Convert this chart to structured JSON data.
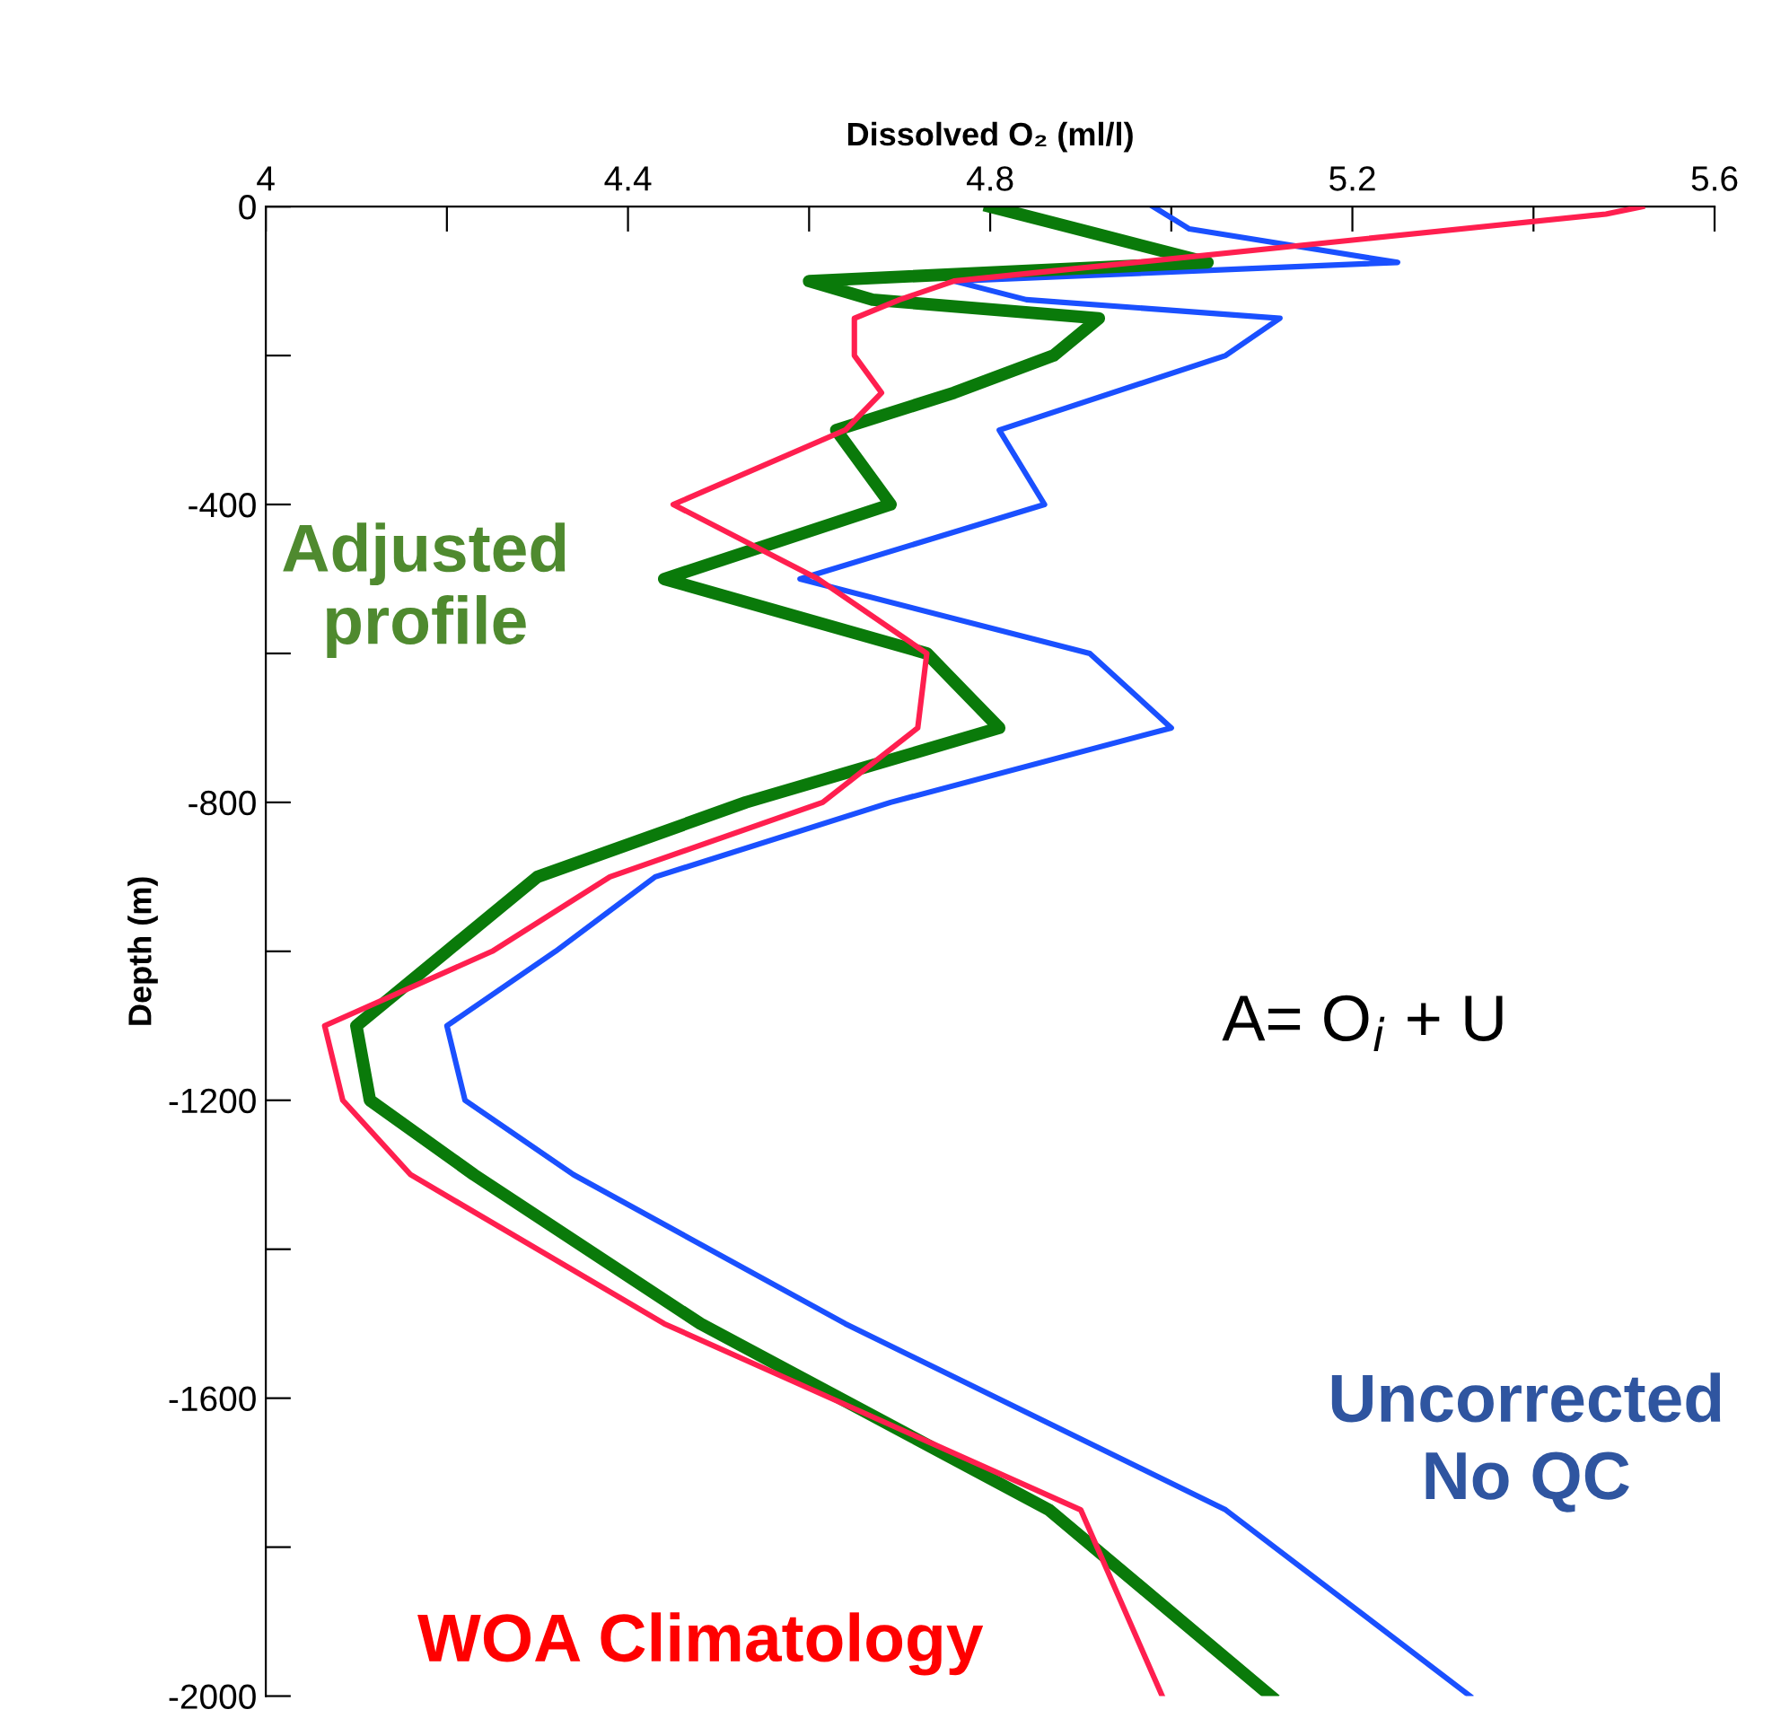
{
  "chart_data": {
    "type": "line",
    "xlabel": "Dissolved O₂ (ml/l)",
    "ylabel": "Depth (m)",
    "xlim": [
      4,
      5.6
    ],
    "xticks": [
      4,
      {
        "value": 4.2,
        "label": null
      },
      4.4,
      {
        "value": 4.6,
        "label": null
      },
      4.8,
      {
        "value": 5.0,
        "label": null
      },
      5.2,
      {
        "value": 5.4,
        "label": null
      },
      5.6
    ],
    "ylim": [
      -2000,
      0
    ],
    "yticks": [
      0,
      {
        "value": -200,
        "label": null
      },
      -400,
      {
        "value": -600,
        "label": null
      },
      -800,
      {
        "value": -1000,
        "label": null
      },
      -1200,
      {
        "value": -1400,
        "label": null
      },
      -1600,
      {
        "value": -1800,
        "label": null
      },
      -2000
    ],
    "grid": false,
    "legend": false,
    "marker": "none",
    "line_style": "solid",
    "series": [
      {
        "name": "WOA Climatology",
        "color": "#ff1f4f",
        "x": [
          5.52,
          5.48,
          4.76,
          4.7,
          4.65,
          4.65,
          4.68,
          4.64,
          4.45,
          4.61,
          4.73,
          4.72,
          4.615,
          4.38,
          4.25,
          4.065,
          4.085,
          4.16,
          4.44,
          4.9,
          4.99
        ],
        "values": [
          0,
          -10,
          -100,
          -125,
          -150,
          -200,
          -250,
          -300,
          -400,
          -500,
          -600,
          -700,
          -800,
          -900,
          -1000,
          -1100,
          -1200,
          -1300,
          -1500,
          -1750,
          -2000
        ]
      },
      {
        "name": "Uncorrected No QC",
        "color": "#1a50ff",
        "x": [
          4.98,
          5.02,
          5.25,
          4.76,
          4.84,
          5.12,
          5.06,
          4.81,
          4.86,
          4.59,
          4.91,
          5.0,
          4.69,
          4.43,
          4.32,
          4.2,
          4.22,
          4.34,
          4.64,
          5.06,
          5.33
        ],
        "values": [
          0,
          -30,
          -75,
          -100,
          -125,
          -150,
          -200,
          -300,
          -400,
          -500,
          -600,
          -700,
          -800,
          -900,
          -1000,
          -1100,
          -1200,
          -1300,
          -1500,
          -1750,
          -2000
        ]
      },
      {
        "name": "Adjusted profile",
        "color": "#0a7a0a",
        "x": [
          4.8,
          5.04,
          4.6,
          4.67,
          4.92,
          4.87,
          4.76,
          4.63,
          4.69,
          4.44,
          4.73,
          4.81,
          4.53,
          4.3,
          4.2,
          4.1,
          4.115,
          4.23,
          4.48,
          4.865,
          5.11
        ],
        "values": [
          0,
          -75,
          -100,
          -125,
          -150,
          -200,
          -250,
          -300,
          -400,
          -500,
          -600,
          -700,
          -800,
          -900,
          -1000,
          -1100,
          -1200,
          -1300,
          -1500,
          -1750,
          -2000
        ]
      }
    ],
    "annotations": [
      "A= O$_{i}$ + U"
    ]
  }
}
